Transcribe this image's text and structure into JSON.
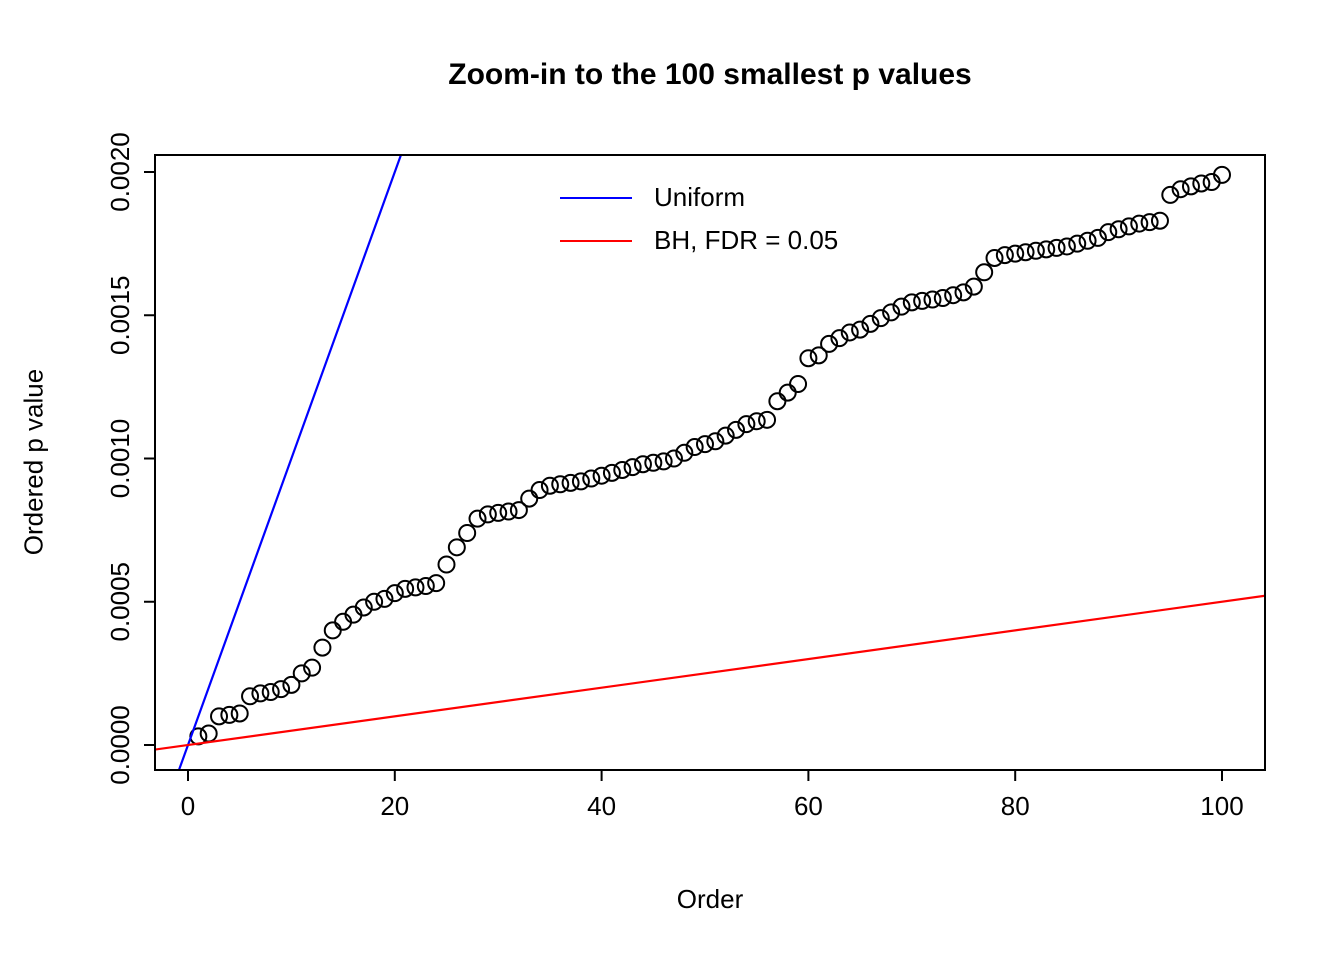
{
  "chart_data": {
    "type": "scatter",
    "title": "Zoom-in to the 100 smallest p values",
    "xlabel": "Order",
    "ylabel": "Ordered p value",
    "xlim": [
      -4,
      104
    ],
    "ylim": [
      -8.7e-05,
      0.00206
    ],
    "grid": false,
    "x_ticks": [
      0,
      20,
      40,
      60,
      80,
      100
    ],
    "y_ticks": [
      0,
      0.0005,
      0.001,
      0.0015,
      0.002
    ],
    "y_tick_labels": [
      "0.0000",
      "0.0005",
      "0.0010",
      "0.0015",
      "0.0020"
    ],
    "points": {
      "marker": "open-circle",
      "color": "#000000",
      "x_is_order_1_to_100": true,
      "values": [
        3e-05,
        4e-05,
        0.0001,
        0.000105,
        0.00011,
        0.00017,
        0.00018,
        0.000185,
        0.000195,
        0.00021,
        0.00025,
        0.00027,
        0.00034,
        0.0004,
        0.00043,
        0.000455,
        0.00048,
        0.0005,
        0.00051,
        0.00053,
        0.000545,
        0.00055,
        0.000555,
        0.000565,
        0.00063,
        0.00069,
        0.00074,
        0.00079,
        0.000805,
        0.00081,
        0.000815,
        0.00082,
        0.00086,
        0.00089,
        0.000905,
        0.00091,
        0.000915,
        0.00092,
        0.00093,
        0.00094,
        0.00095,
        0.00096,
        0.00097,
        0.00098,
        0.000985,
        0.00099,
        0.001,
        0.00102,
        0.00104,
        0.00105,
        0.00106,
        0.00108,
        0.0011,
        0.00112,
        0.00113,
        0.001135,
        0.0012,
        0.00123,
        0.00126,
        0.00135,
        0.00136,
        0.0014,
        0.00142,
        0.00144,
        0.00145,
        0.00147,
        0.00149,
        0.00151,
        0.00153,
        0.001545,
        0.00155,
        0.001555,
        0.00156,
        0.00157,
        0.00158,
        0.0016,
        0.00165,
        0.0017,
        0.00171,
        0.001715,
        0.00172,
        0.001725,
        0.00173,
        0.001735,
        0.00174,
        0.00175,
        0.00176,
        0.00177,
        0.00179,
        0.0018,
        0.00181,
        0.00182,
        0.001825,
        0.00183,
        0.00192,
        0.00194,
        0.00195,
        0.00196,
        0.001965,
        0.00199
      ]
    },
    "lines": [
      {
        "name": "Uniform",
        "color": "#0000FF",
        "slope": 0.0001,
        "intercept": 0
      },
      {
        "name": "BH, FDR = 0.05",
        "color": "#FF0000",
        "slope": 5e-06,
        "intercept": 0
      }
    ],
    "legend": {
      "position": "top-center-inside",
      "items": [
        {
          "label": "Uniform",
          "color": "#0000FF"
        },
        {
          "label": "BH, FDR = 0.05",
          "color": "#FF0000"
        }
      ]
    }
  }
}
